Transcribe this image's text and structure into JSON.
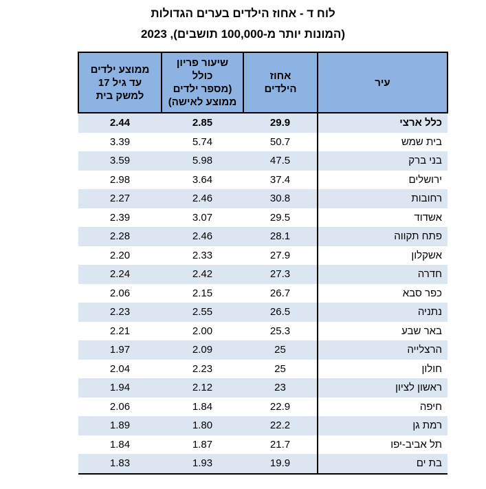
{
  "title": "לוח ד - אחוז הילדים בערים הגדולות",
  "subtitle": "(המונות יותר מ-100,000 תושבים), 2023",
  "colors": {
    "header_bg": "#8DB3E2",
    "stripe_bg": "#DCE6F1",
    "border": "#000000",
    "text": "#000000"
  },
  "table": {
    "columns": [
      {
        "key": "city",
        "label": "עיר"
      },
      {
        "key": "pct_children",
        "label": "אחוז\nהילדים"
      },
      {
        "key": "fertility",
        "label": "שיעור פריון\nכולל\n(מספר ילדים\nממוצע לאישה)"
      },
      {
        "key": "avg_children",
        "label": "ממוצע ילדים\nעד גיל 17\nלמשק בית"
      }
    ],
    "rows": [
      {
        "city": "כלל ארצי",
        "pct_children": "29.9",
        "fertility": "2.85",
        "avg_children": "2.44",
        "bold": true
      },
      {
        "city": "בית שמש",
        "pct_children": "50.7",
        "fertility": "5.74",
        "avg_children": "3.39"
      },
      {
        "city": "בני ברק",
        "pct_children": "47.5",
        "fertility": "5.98",
        "avg_children": "3.59"
      },
      {
        "city": "ירושלים",
        "pct_children": "37.4",
        "fertility": "3.64",
        "avg_children": "2.98"
      },
      {
        "city": "רחובות",
        "pct_children": "30.8",
        "fertility": "2.46",
        "avg_children": "2.27"
      },
      {
        "city": "אשדוד",
        "pct_children": "29.5",
        "fertility": "3.07",
        "avg_children": "2.39"
      },
      {
        "city": "פתח תקווה",
        "pct_children": "28.1",
        "fertility": "2.46",
        "avg_children": "2.28"
      },
      {
        "city": "אשקלון",
        "pct_children": "27.9",
        "fertility": "2.33",
        "avg_children": "2.20"
      },
      {
        "city": "חדרה",
        "pct_children": "27.3",
        "fertility": "2.42",
        "avg_children": "2.24"
      },
      {
        "city": "כפר סבא",
        "pct_children": "26.7",
        "fertility": "2.15",
        "avg_children": "2.06"
      },
      {
        "city": "נתניה",
        "pct_children": "26.5",
        "fertility": "2.55",
        "avg_children": "2.23"
      },
      {
        "city": "באר שבע",
        "pct_children": "25.3",
        "fertility": "2.00",
        "avg_children": "2.21"
      },
      {
        "city": "הרצלייה",
        "pct_children": "25",
        "fertility": "2.09",
        "avg_children": "1.97"
      },
      {
        "city": "חולון",
        "pct_children": "25",
        "fertility": "2.23",
        "avg_children": "2.04"
      },
      {
        "city": "ראשון לציון",
        "pct_children": "23",
        "fertility": "2.12",
        "avg_children": "1.94"
      },
      {
        "city": "חיפה",
        "pct_children": "22.9",
        "fertility": "1.84",
        "avg_children": "2.06"
      },
      {
        "city": "רמת גן",
        "pct_children": "22.2",
        "fertility": "1.80",
        "avg_children": "1.89"
      },
      {
        "city": "תל אביב-יפו",
        "pct_children": "21.7",
        "fertility": "1.87",
        "avg_children": "1.84"
      },
      {
        "city": "בת ים",
        "pct_children": "19.9",
        "fertility": "1.93",
        "avg_children": "1.83"
      }
    ]
  }
}
